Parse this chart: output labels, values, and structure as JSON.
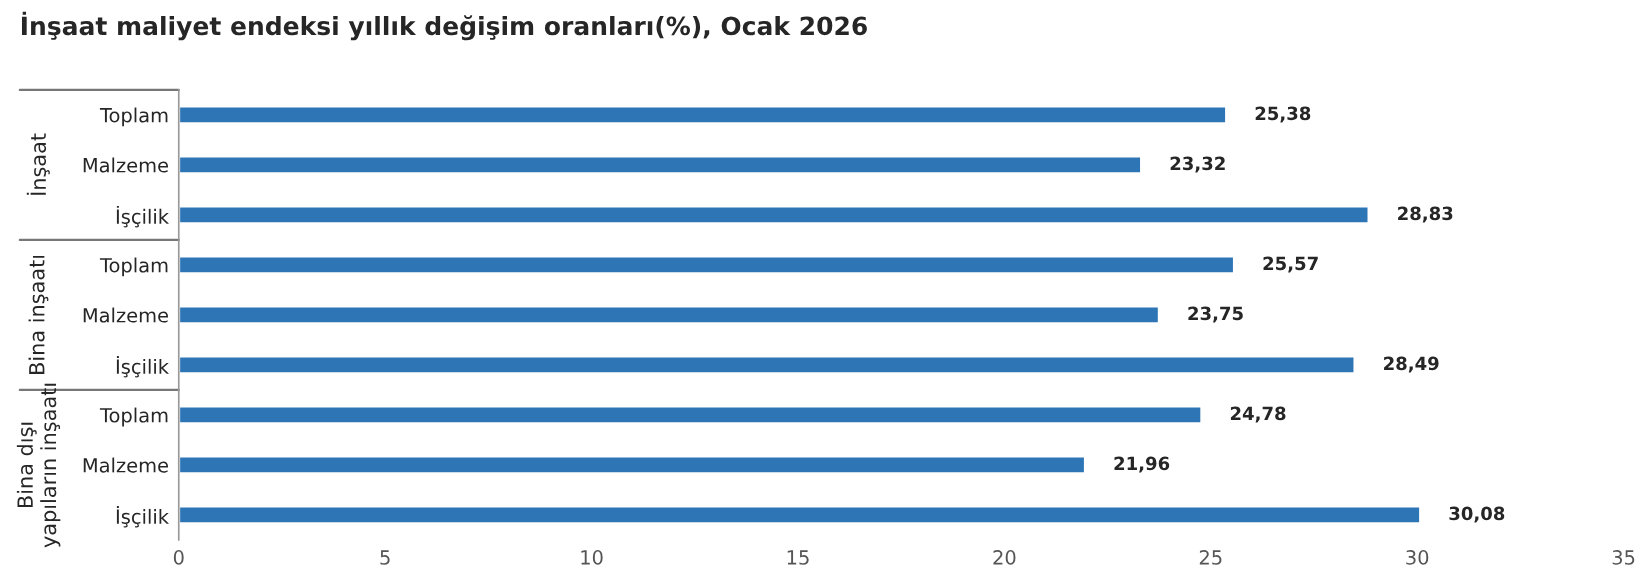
{
  "chart_data": {
    "type": "bar",
    "orientation": "horizontal",
    "title": "İnşaat maliyet endeksi yıllık değişim oranları(%), Ocak 2026",
    "categories": [
      "Toplam",
      "Malzeme",
      "İşçilik",
      "Toplam",
      "Malzeme",
      "İşçilik",
      "Toplam",
      "Malzeme",
      "İşçilik"
    ],
    "values": [
      25.38,
      23.32,
      28.83,
      25.57,
      23.75,
      28.49,
      24.78,
      21.96,
      30.08
    ],
    "value_labels": [
      "25,38",
      "23,32",
      "28,83",
      "25,57",
      "23,75",
      "28,49",
      "24,78",
      "21,96",
      "30,08"
    ],
    "color": "#2e75b6",
    "xlim": [
      0,
      35
    ],
    "xticks": [
      0,
      5,
      10,
      15,
      20,
      25,
      30,
      35
    ],
    "annotations": [
      "İnşaat",
      "Bina inşaatı",
      "Bina dışı\nyapıların inşaatı"
    ],
    "grid": false,
    "legend": false
  }
}
